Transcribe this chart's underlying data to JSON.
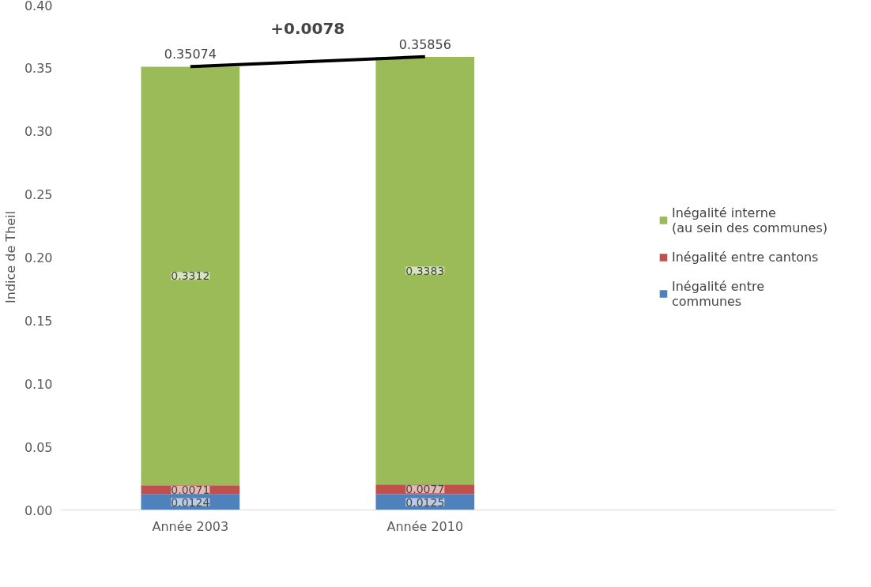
{
  "chart_data": {
    "type": "bar",
    "stacked": true,
    "ylabel": "Indice de Theil",
    "categories": [
      "Année 2003",
      "Année 2010"
    ],
    "series": [
      {
        "name": "Inégalité entre\ncommunes",
        "color": "#4f81bd",
        "values": [
          0.0124,
          0.0125
        ]
      },
      {
        "name": "Inégalité entre cantons",
        "color": "#c0504d",
        "values": [
          0.0071,
          0.0077
        ]
      },
      {
        "name": "Inégalité interne\n(au sein des communes)",
        "color": "#9bbb59",
        "values": [
          0.3312,
          0.3383
        ]
      },
      {
        "type": "line",
        "color": "#000000",
        "values": [
          0.35074,
          0.35856
        ],
        "value_labels": [
          "0.35074",
          "0.35856"
        ]
      }
    ],
    "data_labels": true,
    "annotations": [
      "+0.0078"
    ],
    "ylim": [
      0,
      0.4
    ],
    "yticks": [
      {
        "value": 0,
        "label": "0.00"
      },
      0.05,
      {
        "value": 0.1,
        "label": "0.10"
      },
      0.15,
      {
        "value": 0.2,
        "label": "0.20"
      },
      0.25,
      {
        "value": 0.3,
        "label": "0.30"
      },
      0.35,
      {
        "value": 0.4,
        "label": "0.40"
      }
    ],
    "grid": false,
    "legend": "right"
  }
}
